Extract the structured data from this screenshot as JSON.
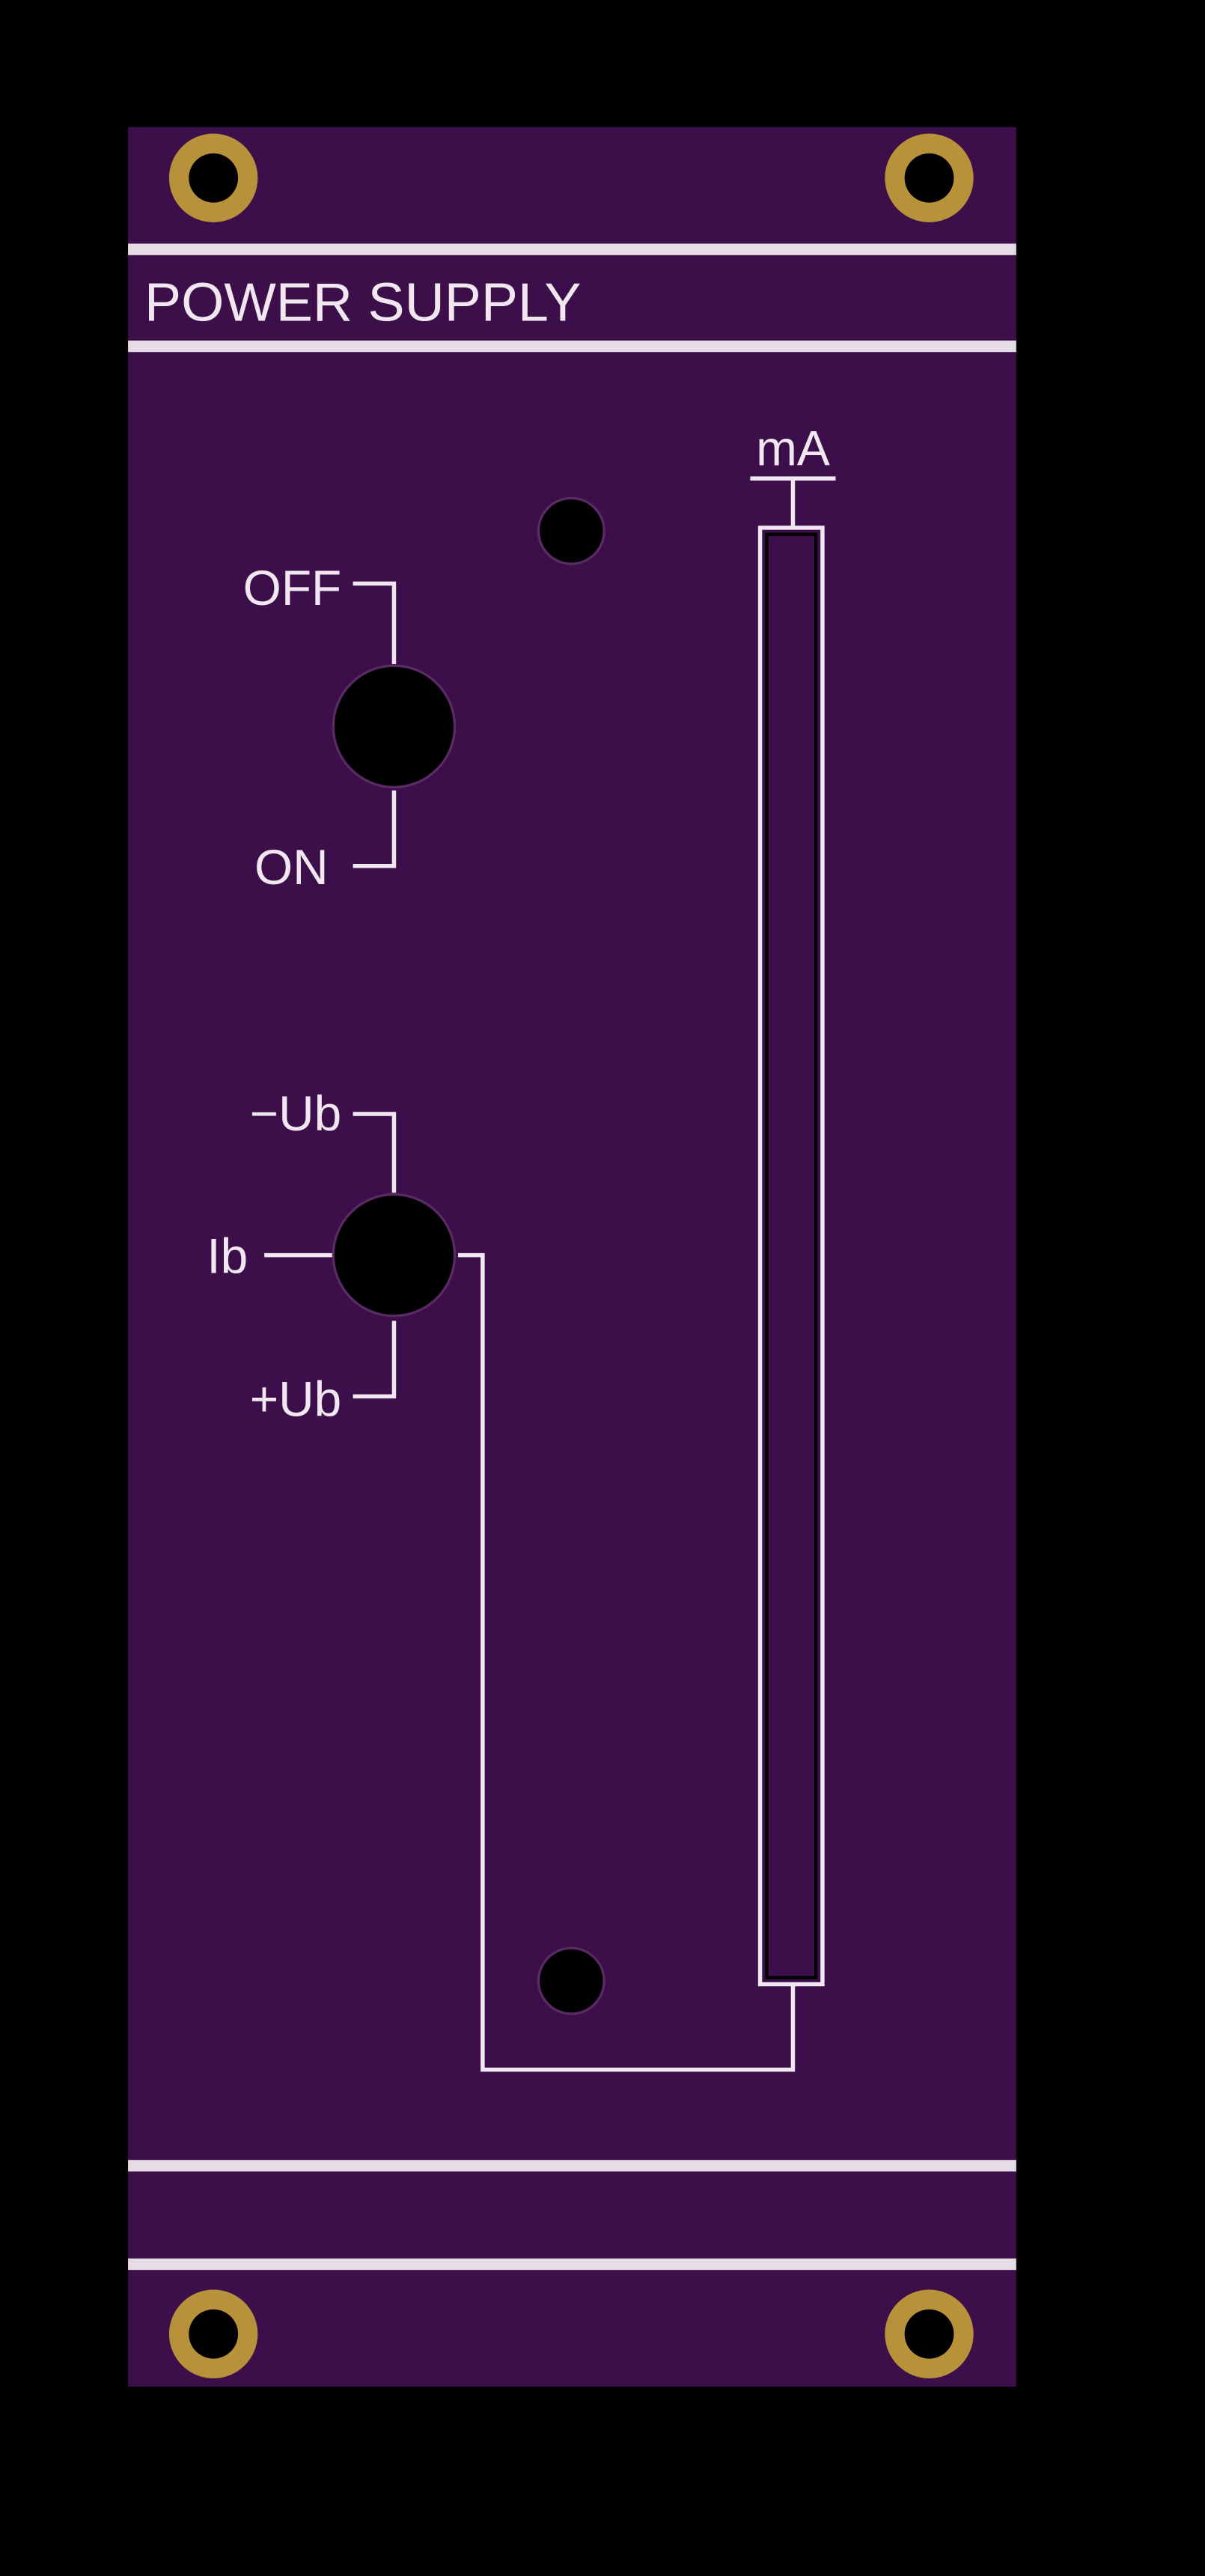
{
  "panel": {
    "title": "POWER SUPPLY",
    "colors": {
      "background": "#000000",
      "pcb": "#3d0f4a",
      "silkscreen": "#f1e7f0",
      "mount_gold": "#b8923a",
      "hole": "#000000"
    }
  },
  "switch_power": {
    "label_top": "OFF",
    "label_bottom": "ON"
  },
  "switch_mode": {
    "label_top": "−Ub",
    "label_left": "Ib",
    "label_bottom": "+Ub"
  },
  "meter": {
    "unit": "mA"
  },
  "icons": {
    "mount_hole": "mounting-hole-icon",
    "switch": "toggle-switch-icon",
    "led": "led-hole-icon"
  }
}
